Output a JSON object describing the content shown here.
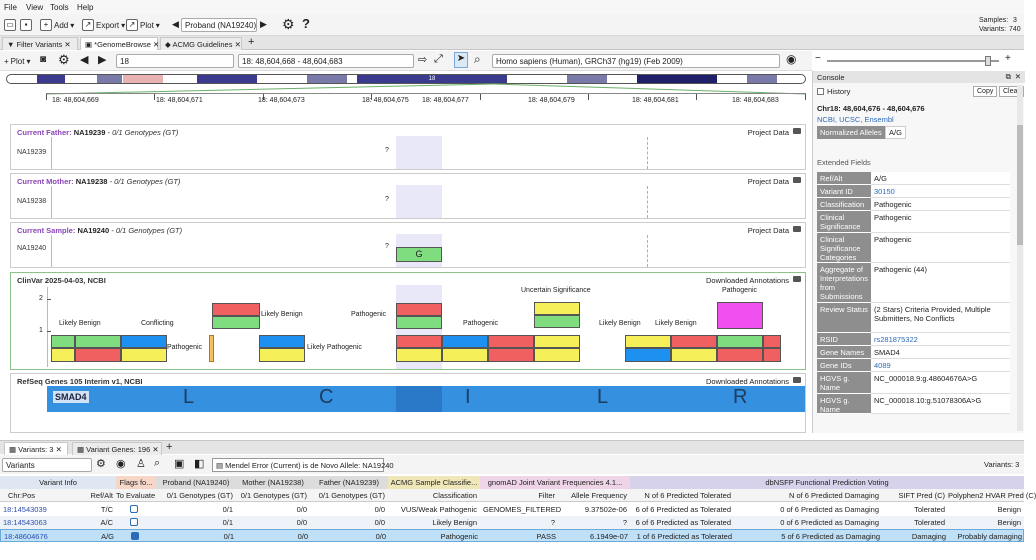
{
  "menu": [
    "File",
    "View",
    "Tools",
    "Help"
  ],
  "toolbar": {
    "add": "Add",
    "export": "Export",
    "plot": "Plot",
    "proband_select": "Proband (NA19240)",
    "samples_label": "Samples:",
    "samples_count": "3",
    "variants_label": "Variants:",
    "variants_count": "740"
  },
  "doctabs": [
    "Filter Variants",
    "*GenomeBrowse",
    "ACMG Guidelines"
  ],
  "genome_toolbar": {
    "plot": "Plot",
    "chrom": "18",
    "locus": "18: 48,604,668 - 48,604,683",
    "assembly": "Homo sapiens (Human), GRCh37 (hg19) (Feb 2009)"
  },
  "ideogram_label": "18",
  "ruler": [
    "18: 48,604,669",
    "18: 48,604,671",
    "18: 48,604,673",
    "18: 48,604,675",
    "18: 48,604,677",
    "18: 48,604,679",
    "18: 48,604,681",
    "18: 48,604,683"
  ],
  "tracks": {
    "father": {
      "role": "Current Father:",
      "sample": "NA19239",
      "desc": "- 0/1 Genotypes (GT)",
      "right": "Project Data",
      "label": "NA19239",
      "call": "?"
    },
    "mother": {
      "role": "Current Mother:",
      "sample": "NA19238",
      "desc": "- 0/1 Genotypes (GT)",
      "right": "Project Data",
      "label": "NA19238",
      "call": "?"
    },
    "sample": {
      "role": "Current Sample:",
      "sample": "NA19240",
      "desc": "- 0/1 Genotypes (GT)",
      "right": "Project Data",
      "label": "NA19240",
      "call": "?",
      "allele": "G"
    },
    "clinvar": {
      "title": "ClinVar 2025-04-03, NCBI",
      "right": "Downloaded Annotations",
      "y2": "2",
      "y1": "1",
      "labels": [
        "Likely Benign",
        "Conflicting",
        "Pathogenic",
        "Likely Benign",
        "Likely Pathogenic",
        "Pathogenic",
        "Pathogenic",
        "Uncertain Significance",
        "Pathogenic",
        "Likely Benign",
        "Likely Benign"
      ]
    },
    "refseq": {
      "title": "RefSeq Genes 105 Interim v1, NCBI",
      "right": "Downloaded Annotations",
      "gene": "SMAD4",
      "aa": [
        "L",
        "C",
        "I",
        "L",
        "R"
      ]
    }
  },
  "console": {
    "title": "Console",
    "history": "History",
    "copy": "Copy",
    "clear": "Clear",
    "locus": "Chr18: 48,604,676 - 48,604,676",
    "links": "NCBI, UCSC, Ensembl",
    "norm_label": "Normalized Alleles",
    "norm_value": "A/G",
    "extended": "Extended Fields",
    "fields": [
      {
        "k": "Ref/Alt",
        "v": "A/G"
      },
      {
        "k": "Variant ID",
        "v": "30150"
      },
      {
        "k": "Classification",
        "v": "Pathogenic"
      },
      {
        "k": "Clinical Significance",
        "v": "Pathogenic"
      },
      {
        "k": "Clinical Significance Categories",
        "v": "Pathogenic"
      },
      {
        "k": "Aggregate of Interpretations from Submissions",
        "v": "Pathogenic (44)"
      },
      {
        "k": "Review Status",
        "v": "(2 Stars) Criteria Provided, Multiple Submitters, No Conflicts"
      },
      {
        "k": "RSID",
        "v": "rs281875322"
      },
      {
        "k": "Gene Names",
        "v": "SMAD4"
      },
      {
        "k": "Gene IDs",
        "v": "4089"
      },
      {
        "k": "HGVS g. Name",
        "v": "NC_000018.9:g.48604676A>G"
      },
      {
        "k": "HGVS g. Name",
        "v": "NC_000018.10:g.51078306A>G"
      }
    ]
  },
  "bottom_tabs": {
    "variants": "Variants: 3",
    "genes": "Variant Genes: 196"
  },
  "bottom_toolbar": {
    "view": "Variants",
    "filter": "Mendel Error (Current) is de Novo Allele: NA19240",
    "count": "Variants: 3"
  },
  "grid": {
    "groups": [
      "Variant Info",
      "Flags fo...",
      "Proband (NA19240)",
      "Mother (NA19238)",
      "Father (NA19239)",
      "ACMG Sample Classifie...",
      "gnomAD Joint Variant Frequencies 4.1...",
      "dbNSFP Functional Prediction Voting"
    ],
    "cols": [
      "Chr:Pos",
      "Ref/Alt",
      "To Evaluate",
      "0/1 Genotypes (GT)",
      "0/1 Genotypes (GT)",
      "0/1 Genotypes (GT)",
      "Classification",
      "Filter",
      "Allele Frequency",
      "N of 6 Predicted Tolerated",
      "N of 6 Predicted Damaging",
      "SIFT Pred (C)",
      "Polyphen2 HVAR Pred (C)"
    ],
    "rows": [
      [
        "18:14543039",
        "T/C",
        "",
        "0/1",
        "0/0",
        "0/0",
        "VUS/Weak Pathogenic",
        "GENOMES_FILTERED",
        "9.37502e-06",
        "6 of 6 Predicted as Tolerated",
        "0 of 6 Predicted as Damaging",
        "Tolerated",
        "Benign"
      ],
      [
        "18:14543063",
        "A/C",
        "",
        "0/1",
        "0/0",
        "0/0",
        "Likely Benign",
        "?",
        "?",
        "6 of 6 Predicted as Tolerated",
        "0 of 6 Predicted as Damaging",
        "Tolerated",
        "Benign"
      ],
      [
        "18:48604676",
        "A/G",
        "",
        "0/1",
        "0/0",
        "0/0",
        "Pathogenic",
        "PASS",
        "6.1949e-07",
        "1 of 6 Predicted as Tolerated",
        "5 of 6 Predicted as Damaging",
        "Damaging",
        "Probably damaging"
      ]
    ]
  }
}
